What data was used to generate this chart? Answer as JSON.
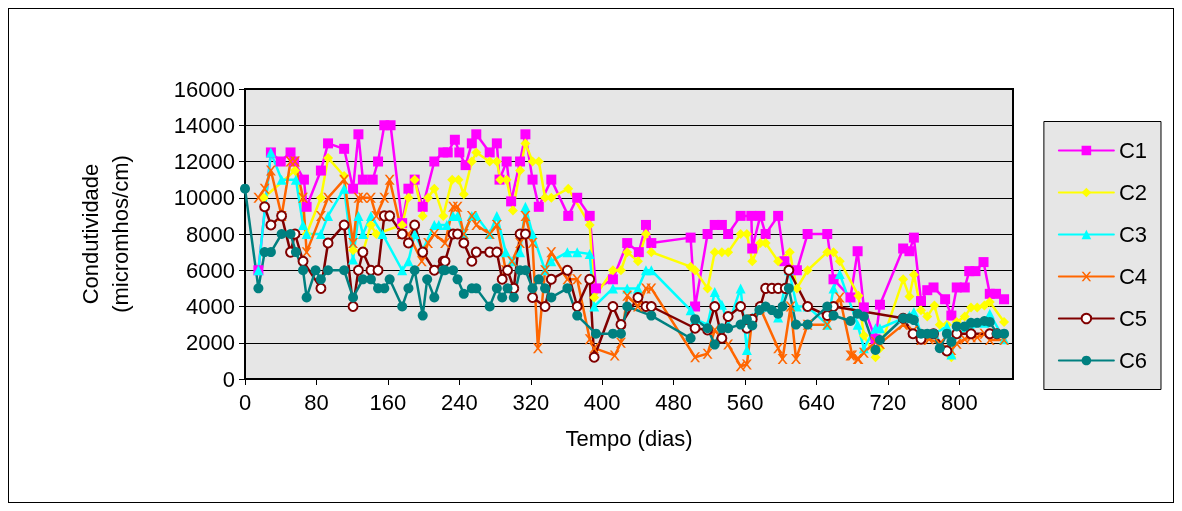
{
  "chart_data": {
    "type": "line",
    "xlabel": "Tempo (dias)",
    "ylabel": "Condutividade\n(micromhos/cm)",
    "xlim": [
      0,
      860
    ],
    "xticks": [
      0,
      80,
      160,
      240,
      320,
      400,
      480,
      560,
      640,
      720,
      800
    ],
    "ylim": [
      0,
      16000
    ],
    "yticks": [
      0,
      2000,
      4000,
      6000,
      8000,
      10000,
      12000,
      14000,
      16000
    ],
    "grid": "y",
    "legend": "right",
    "line_style": "solid",
    "series": [
      {
        "name": "C1",
        "color": "#ff00ff",
        "marker": "square",
        "x": [
          15,
          29,
          40,
          51,
          55,
          66,
          69,
          85,
          93,
          111,
          121,
          127,
          132,
          143,
          149,
          156,
          163,
          176,
          183,
          190,
          199,
          212,
          222,
          227,
          235,
          240,
          247,
          254,
          259,
          274,
          282,
          285,
          293,
          298,
          308,
          314,
          322,
          329,
          343,
          362,
          372,
          386,
          393,
          412,
          428,
          441,
          449,
          455,
          499,
          504,
          518,
          526,
          534,
          541,
          555,
          567,
          568,
          577,
          583,
          597,
          604,
          618,
          630,
          652,
          659,
          678,
          686,
          693,
          706,
          711,
          737,
          744,
          749,
          757,
          764,
          771,
          784,
          791,
          797,
          806,
          811,
          818,
          827,
          834,
          841,
          850
        ],
        "values": [
          6000,
          12500,
          12000,
          12500,
          12000,
          11000,
          9500,
          11500,
          13000,
          12700,
          10500,
          13500,
          11000,
          11000,
          12000,
          14000,
          14000,
          8600,
          10500,
          11000,
          9500,
          12000,
          12500,
          12500,
          13200,
          12500,
          11800,
          13000,
          13500,
          12500,
          13000,
          11000,
          12000,
          9800,
          12000,
          13500,
          11000,
          9500,
          11000,
          9000,
          10000,
          9000,
          5000,
          5500,
          7500,
          7000,
          8500,
          7500,
          7800,
          4000,
          8000,
          8500,
          8500,
          8000,
          9000,
          9000,
          7200,
          9000,
          8000,
          9000,
          6500,
          6000,
          8000,
          8000,
          5500,
          4500,
          7050,
          3950,
          2200,
          4100,
          7200,
          7050,
          7800,
          4300,
          4900,
          5050,
          4400,
          3500,
          5050,
          5050,
          5950,
          5950,
          6450,
          4700,
          4700,
          4400
        ]
      },
      {
        "name": "C2",
        "color": "#ffff00",
        "marker": "diamond",
        "x": [
          21,
          56,
          69,
          85,
          93,
          111,
          121,
          132,
          141,
          147,
          176,
          183,
          190,
          199,
          205,
          212,
          222,
          232,
          239,
          245,
          254,
          259,
          274,
          282,
          286,
          293,
          300,
          308,
          314,
          322,
          329,
          336,
          343,
          362,
          386,
          391,
          412,
          421,
          428,
          440,
          449,
          455,
          499,
          504,
          518,
          526,
          534,
          541,
          555,
          562,
          568,
          577,
          583,
          597,
          610,
          618,
          630,
          652,
          659,
          666,
          687,
          693,
          706,
          711,
          737,
          744,
          749,
          757,
          764,
          772,
          778,
          786,
          791,
          797,
          806,
          813,
          820,
          828,
          834,
          850
        ],
        "values": [
          10000,
          11500,
          8000,
          10000,
          12200,
          11200,
          7100,
          7000,
          8500,
          8000,
          8500,
          10000,
          11000,
          9000,
          10000,
          10500,
          9000,
          11000,
          11000,
          10200,
          12000,
          12500,
          12000,
          12000,
          11000,
          11000,
          9300,
          11500,
          13000,
          12000,
          12000,
          10000,
          10000,
          10500,
          8500,
          4500,
          6000,
          6000,
          7000,
          6500,
          8000,
          7000,
          6200,
          6000,
          5000,
          7000,
          7000,
          7000,
          8000,
          8000,
          6500,
          7500,
          7500,
          6500,
          7000,
          5000,
          6000,
          7000,
          7000,
          6500,
          4600,
          2400,
          1200,
          1700,
          5500,
          4550,
          5750,
          3800,
          3450,
          4050,
          3000,
          3000,
          1200,
          3150,
          3450,
          3950,
          3950,
          4050,
          4250,
          3150
        ]
      },
      {
        "name": "C3",
        "color": "#00ffff",
        "marker": "triangle",
        "x": [
          15,
          29,
          41,
          57,
          65,
          69,
          85,
          93,
          111,
          121,
          127,
          132,
          141,
          154,
          176,
          183,
          190,
          199,
          212,
          217,
          226,
          233,
          238,
          245,
          254,
          259,
          274,
          282,
          292,
          299,
          308,
          314,
          322,
          336,
          343,
          361,
          372,
          386,
          391,
          412,
          428,
          440,
          449,
          455,
          499,
          504,
          518,
          526,
          534,
          541,
          555,
          562,
          568,
          577,
          583,
          597,
          609,
          618,
          630,
          652,
          659,
          666,
          686,
          693,
          706,
          711,
          737,
          744,
          749,
          757,
          772,
          786,
          791,
          797,
          813,
          828,
          834,
          850
        ],
        "values": [
          6000,
          12500,
          11000,
          11000,
          8500,
          8000,
          8000,
          9000,
          10500,
          6600,
          9000,
          8000,
          9000,
          8000,
          6000,
          6500,
          8000,
          7100,
          8500,
          8500,
          8500,
          9000,
          9000,
          8000,
          9000,
          9000,
          8000,
          9000,
          7000,
          6500,
          7000,
          9500,
          8000,
          6000,
          6500,
          7000,
          7000,
          6900,
          4000,
          5000,
          5000,
          5000,
          6000,
          6000,
          3800,
          3300,
          3000,
          4800,
          4100,
          3000,
          5000,
          1600,
          3400,
          4000,
          4000,
          3400,
          6000,
          4000,
          4000,
          3000,
          5000,
          5800,
          3000,
          1700,
          2800,
          2800,
          3350,
          3500,
          3700,
          2500,
          2500,
          2900,
          1350,
          2500,
          2800,
          3100,
          3600,
          2200
        ]
      },
      {
        "name": "C4",
        "color": "#ff6600",
        "marker": "cross",
        "x": [
          15,
          22,
          29,
          41,
          51,
          56,
          65,
          69,
          85,
          93,
          111,
          121,
          127,
          132,
          141,
          147,
          156,
          162,
          176,
          183,
          198,
          205,
          212,
          224,
          233,
          238,
          245,
          254,
          259,
          274,
          282,
          292,
          299,
          308,
          314,
          322,
          328,
          336,
          343,
          361,
          372,
          386,
          391,
          414,
          421,
          428,
          440,
          449,
          455,
          504,
          518,
          526,
          541,
          555,
          562,
          568,
          577,
          597,
          602,
          611,
          617,
          630,
          652,
          666,
          680,
          687,
          678,
          686,
          693,
          706,
          711,
          737,
          748,
          757,
          766,
          778,
          791,
          797,
          806,
          813,
          820,
          828,
          834,
          850
        ],
        "values": [
          10000,
          10500,
          11500,
          9000,
          12000,
          12000,
          10000,
          7000,
          9000,
          10000,
          11000,
          7500,
          10000,
          10000,
          10000,
          9000,
          10000,
          11000,
          8000,
          8000,
          6500,
          7500,
          8000,
          7500,
          9500,
          9500,
          8000,
          9000,
          8500,
          8000,
          8500,
          6000,
          6500,
          7500,
          9000,
          7500,
          1700,
          6000,
          7000,
          5500,
          5500,
          2200,
          1700,
          1300,
          2000,
          4600,
          4000,
          5000,
          5000,
          1200,
          1400,
          2700,
          1900,
          700,
          800,
          3300,
          3900,
          1700,
          1100,
          4000,
          1100,
          3000,
          3000,
          4500,
          1300,
          1100,
          1300,
          1100,
          1450,
          2050,
          1950,
          3000,
          2650,
          2150,
          2200,
          1950,
          1600,
          1950,
          2200,
          2300,
          2300,
          2500,
          2150,
          2150
        ]
      },
      {
        "name": "C5",
        "color": "#800000",
        "marker": "emptyCircle",
        "x": [
          22,
          29,
          41,
          51,
          56,
          65,
          85,
          93,
          111,
          121,
          127,
          132,
          141,
          149,
          156,
          162,
          176,
          183,
          190,
          199,
          212,
          222,
          224,
          233,
          238,
          245,
          254,
          259,
          274,
          282,
          288,
          294,
          301,
          308,
          314,
          322,
          336,
          343,
          361,
          372,
          386,
          391,
          412,
          421,
          440,
          449,
          455,
          504,
          518,
          526,
          534,
          541,
          555,
          562,
          568,
          577,
          583,
          590,
          597,
          605,
          609,
          630,
          652,
          659,
          737,
          748,
          757,
          771,
          786,
          797,
          813,
          834,
          842
        ],
        "values": [
          9500,
          8500,
          9000,
          7000,
          8000,
          6500,
          5000,
          7500,
          8500,
          4000,
          6000,
          7000,
          6000,
          6000,
          9000,
          9000,
          8000,
          7500,
          8500,
          7000,
          6000,
          6500,
          6500,
          8000,
          8000,
          7500,
          6500,
          7000,
          7000,
          7000,
          5500,
          6000,
          5000,
          8000,
          8000,
          4500,
          4000,
          5500,
          6000,
          4000,
          5500,
          1200,
          4000,
          3000,
          4500,
          4000,
          4000,
          2800,
          2700,
          4000,
          2250,
          3450,
          4000,
          2800,
          3300,
          4000,
          5000,
          5000,
          5000,
          5000,
          6000,
          4000,
          3500,
          4000,
          3350,
          2500,
          2200,
          2500,
          1550,
          2500,
          2500,
          2500,
          2500
        ]
      },
      {
        "name": "C6",
        "color": "#008080",
        "marker": "circle",
        "x": [
          0,
          15,
          22,
          29,
          41,
          51,
          57,
          65,
          69,
          79,
          85,
          93,
          111,
          121,
          132,
          141,
          149,
          156,
          162,
          176,
          183,
          190,
          199,
          204,
          212,
          222,
          224,
          233,
          238,
          245,
          254,
          259,
          274,
          282,
          288,
          294,
          301,
          308,
          314,
          322,
          329,
          336,
          343,
          361,
          372,
          393,
          412,
          421,
          428,
          455,
          499,
          504,
          518,
          526,
          534,
          541,
          555,
          562,
          568,
          576,
          583,
          590,
          597,
          602,
          609,
          617,
          630,
          652,
          659,
          678,
          686,
          693,
          706,
          711,
          737,
          744,
          749,
          757,
          764,
          771,
          778,
          786,
          791,
          797,
          806,
          813,
          820,
          828,
          834,
          842,
          850
        ],
        "values": [
          10500,
          5000,
          7000,
          7000,
          8000,
          8000,
          7000,
          6000,
          4500,
          6000,
          5500,
          6000,
          6000,
          4500,
          5500,
          5500,
          5000,
          5000,
          5500,
          4000,
          5000,
          6000,
          3500,
          5500,
          4500,
          6000,
          6000,
          6000,
          5500,
          4700,
          5000,
          5000,
          4000,
          5000,
          4500,
          5000,
          4500,
          6000,
          6000,
          5000,
          5500,
          5000,
          4500,
          5000,
          3500,
          2500,
          2500,
          2500,
          4000,
          3500,
          2250,
          3300,
          2800,
          1900,
          2800,
          2800,
          3000,
          3300,
          2950,
          3800,
          4000,
          3800,
          3600,
          4000,
          5000,
          3000,
          3000,
          4000,
          3500,
          3200,
          3600,
          3450,
          1600,
          2150,
          3350,
          3350,
          3250,
          2500,
          2500,
          2500,
          1700,
          2500,
          2050,
          2900,
          2900,
          3100,
          3100,
          3200,
          3150,
          2500,
          2500
        ]
      }
    ]
  }
}
